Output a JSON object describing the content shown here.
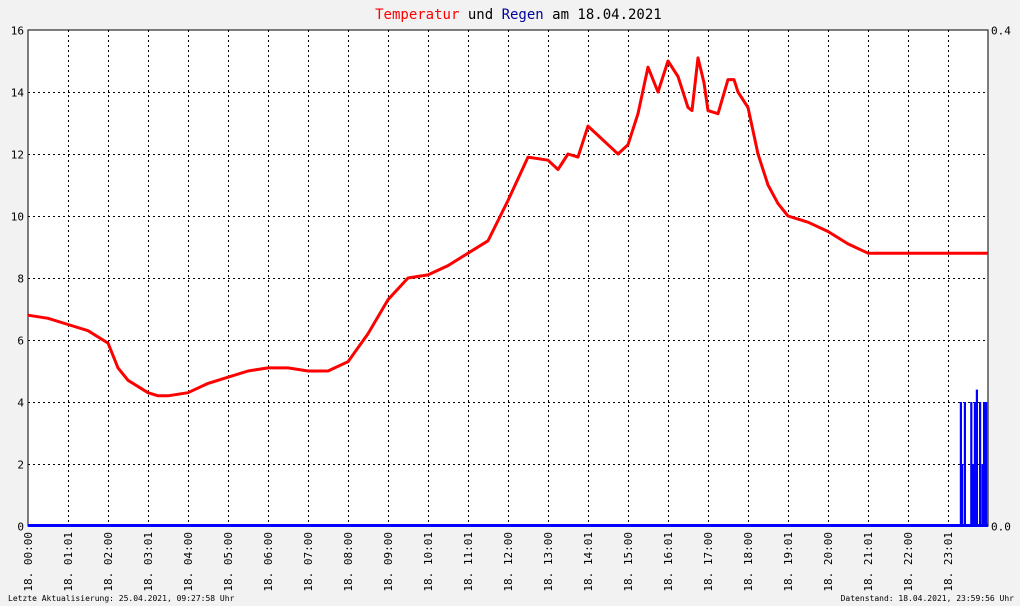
{
  "title": {
    "part1": "Temperatur",
    "part2": " und ",
    "part3": "Regen",
    "part4": " am 18.04.2021",
    "color1": "#ff0000",
    "color3": "#000099"
  },
  "footer": {
    "left": "Letzte Aktualisierung: 25.04.2021, 09:27:58 Uhr",
    "right": "Datenstand: 18.04.2021, 23:59:56 Uhr"
  },
  "chart_data": {
    "type": "line",
    "ylim_left": [
      0,
      16
    ],
    "yticks_left": [
      "0",
      "2",
      "4",
      "6",
      "8",
      "10",
      "12",
      "14",
      "16"
    ],
    "ylim_right": [
      0,
      0.4
    ],
    "yticks_right": [
      "0.0",
      "0.4"
    ],
    "xlim_hours": [
      0,
      24
    ],
    "xticks": [
      "18. 00:00",
      "18. 01:01",
      "18. 02:00",
      "18. 03:01",
      "18. 04:00",
      "18. 05:00",
      "18. 06:00",
      "18. 07:00",
      "18. 08:00",
      "18. 09:00",
      "18. 10:01",
      "18. 11:01",
      "18. 12:00",
      "18. 13:00",
      "18. 14:01",
      "18. 15:00",
      "18. 16:01",
      "18. 17:00",
      "18. 18:00",
      "18. 19:01",
      "18. 20:00",
      "18. 21:01",
      "18. 22:00",
      "18. 23:01"
    ],
    "grid": true,
    "colors": {
      "temperature": "#ff0000",
      "rain": "#0000ff",
      "grid": "#000000",
      "background": "#ffffff"
    },
    "temperature": {
      "x": [
        0,
        0.5,
        1,
        1.5,
        2,
        2.25,
        2.5,
        3,
        3.25,
        3.5,
        4,
        4.5,
        5,
        5.5,
        6,
        6.5,
        7,
        7.5,
        8,
        8.5,
        9,
        9.5,
        10,
        10.5,
        11,
        11.5,
        12,
        12.5,
        13,
        13.25,
        13.5,
        13.75,
        14,
        14.25,
        14.5,
        14.75,
        15,
        15.25,
        15.5,
        15.75,
        16,
        16.25,
        16.5,
        16.6,
        16.75,
        16.9,
        17,
        17.25,
        17.5,
        17.65,
        17.75,
        18,
        18.25,
        18.5,
        18.75,
        19,
        19.25,
        19.5,
        20,
        20.5,
        21,
        21.5,
        22,
        22.5,
        23,
        23.5,
        24
      ],
      "y": [
        6.8,
        6.7,
        6.5,
        6.3,
        5.9,
        5.1,
        4.7,
        4.3,
        4.2,
        4.2,
        4.3,
        4.6,
        4.8,
        5.0,
        5.1,
        5.1,
        5.0,
        5.0,
        5.3,
        6.2,
        7.3,
        8.0,
        8.1,
        8.4,
        8.8,
        9.2,
        10.5,
        11.9,
        11.8,
        11.5,
        12.0,
        11.9,
        12.9,
        12.6,
        12.3,
        12.0,
        12.3,
        13.3,
        14.8,
        14.0,
        15.0,
        14.5,
        13.5,
        13.4,
        15.1,
        14.3,
        13.4,
        13.3,
        14.4,
        14.4,
        14.0,
        13.5,
        12.0,
        11.0,
        10.4,
        10.0,
        9.9,
        9.8,
        9.5,
        9.1,
        8.8,
        8.8,
        8.8,
        8.8,
        8.8,
        8.8,
        8.8
      ]
    },
    "rain": {
      "x": [
        23.32,
        23.35,
        23.42,
        23.58,
        23.62,
        23.67,
        23.72,
        23.8,
        23.86,
        23.9,
        23.95
      ],
      "y": [
        0.1,
        0.05,
        0.1,
        0.1,
        0.05,
        0.1,
        0.11,
        0.1,
        0.05,
        0.1,
        0.1
      ]
    }
  }
}
